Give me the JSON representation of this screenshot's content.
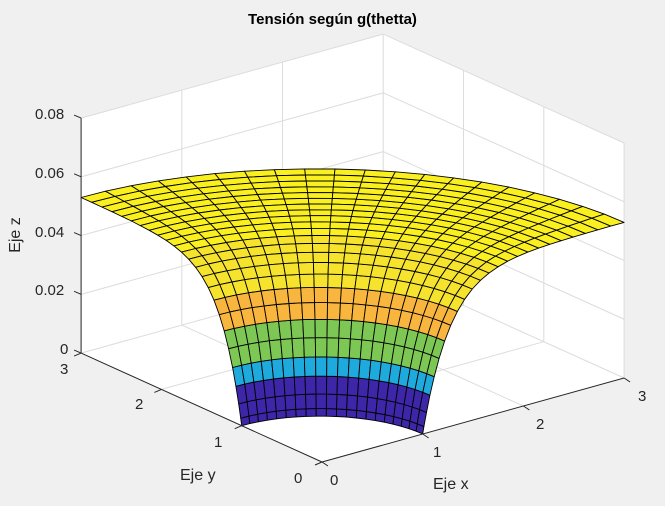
{
  "chart_data": {
    "type": "surface",
    "title": "Tensión según g(thetta)",
    "xlabel": "Eje x",
    "ylabel": "Eje y",
    "zlabel": "Eje z",
    "xlim": [
      0,
      3
    ],
    "ylim": [
      0,
      3
    ],
    "zlim": [
      0,
      0.08
    ],
    "xticks": [
      "0",
      "1",
      "2",
      "3"
    ],
    "yticks": [
      "0",
      "1",
      "2",
      "3"
    ],
    "zticks": [
      "0",
      "0.02",
      "0.04",
      "0.06",
      "0.08"
    ],
    "grid": true,
    "colormap": "parula (banded)",
    "surface": {
      "domain": "quarter annulus, r from 1 to 3, theta from 0 to 90 deg",
      "r_min": 1,
      "r_max": 3,
      "z_at_r_min": 0,
      "z_at_r_max": 0.05,
      "z_plateau": 0.053,
      "theta_segments": 20,
      "radial_segments": 24
    },
    "color_bands": [
      {
        "z_from": 0,
        "z_to": 0.01,
        "color": "#3d26a8"
      },
      {
        "z_from": 0.01,
        "z_to": 0.02,
        "color": "#1eaadc"
      },
      {
        "z_from": 0.02,
        "z_to": 0.03,
        "color": "#7dc855"
      },
      {
        "z_from": 0.03,
        "z_to": 0.04,
        "color": "#f9b63e"
      },
      {
        "z_from": 0.04,
        "z_to": 0.05,
        "color": "#f5e32d"
      },
      {
        "z_from": 0.05,
        "z_to": 0.08,
        "color": "#fbf01f"
      }
    ]
  },
  "figure": {
    "background": "#f0f0f0",
    "axes_background": "#ffffff",
    "grid_color": "#dcdcdc",
    "axis_color": "#262626"
  }
}
